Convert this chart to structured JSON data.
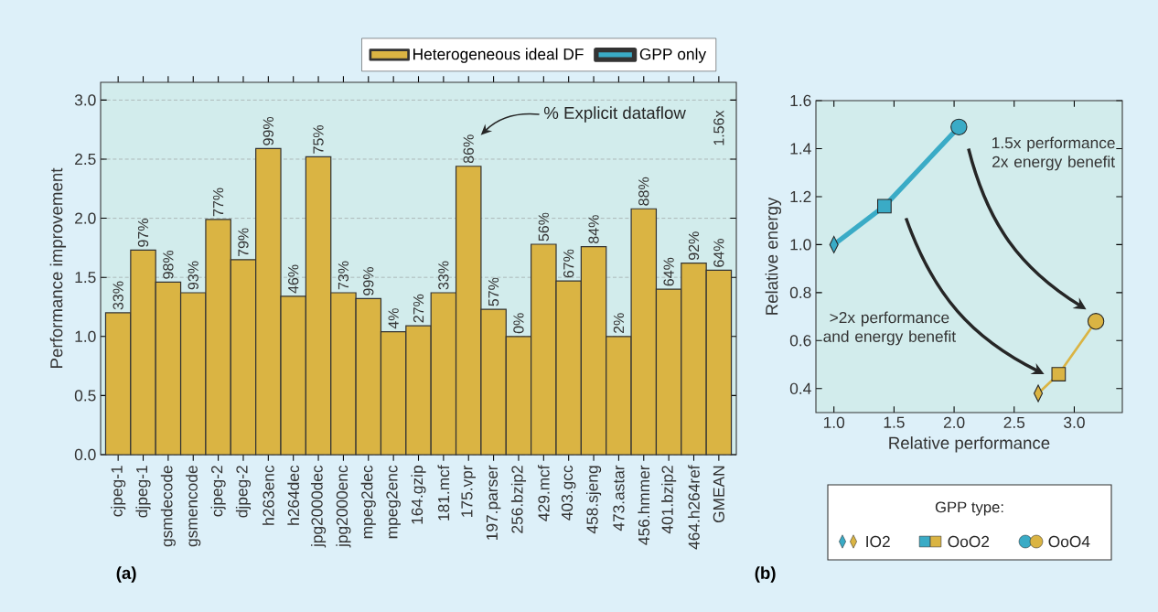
{
  "chart_data": [
    {
      "type": "bar",
      "ylabel": "Performance improvement",
      "color": "#dab443",
      "categories": [
        "cjpeg-1",
        "djpeg-1",
        "gsmdecode",
        "gsmencode",
        "cjpeg-2",
        "djpeg-2",
        "h263enc",
        "h264dec",
        "jpg2000dec",
        "jpg2000enc",
        "mpeg2dec",
        "mpeg2enc",
        "164.gzip",
        "181.mcf",
        "175.vpr",
        "197.parser",
        "256.bzip2",
        "429.mcf",
        "403.gcc",
        "458.sjeng",
        "473.astar",
        "456.hmmer",
        "401.bzip2",
        "464.h264ref",
        "GMEAN"
      ],
      "values": [
        1.2,
        1.73,
        1.46,
        1.37,
        1.99,
        1.65,
        2.59,
        1.34,
        2.52,
        1.37,
        1.32,
        1.04,
        1.09,
        1.37,
        2.44,
        1.23,
        1.0,
        1.78,
        1.47,
        1.76,
        1.0,
        2.08,
        1.4,
        1.62,
        1.56
      ],
      "ylim": [
        0,
        3.15
      ],
      "yticks": [
        {
          "value": 0,
          "label": "0.0"
        },
        {
          "value": 0.5,
          "label": "0.5"
        },
        {
          "value": 1,
          "label": "1.0"
        },
        {
          "value": 1.5,
          "label": "1.5"
        },
        {
          "value": 2,
          "label": "2.0"
        },
        {
          "value": 2.5,
          "label": "2.5"
        },
        {
          "value": 3,
          "label": "3.0"
        }
      ],
      "grid": "y",
      "annotations": [
        {
          "text": "33%",
          "x": "cjpeg-1",
          "y": 1.2
        },
        {
          "text": "97%",
          "x": "djpeg-1",
          "y": 1.73
        },
        {
          "text": "98%",
          "x": "gsmdecode",
          "y": 1.46
        },
        {
          "text": "93%",
          "x": "gsmencode",
          "y": 1.37
        },
        {
          "text": "77%",
          "x": "cjpeg-2",
          "y": 1.99
        },
        {
          "text": "79%",
          "x": "djpeg-2",
          "y": 1.65
        },
        {
          "text": "99%",
          "x": "h263enc",
          "y": 2.59
        },
        {
          "text": "46%",
          "x": "h264dec",
          "y": 1.34
        },
        {
          "text": "75%",
          "x": "jpg2000dec",
          "y": 2.52
        },
        {
          "text": "73%",
          "x": "jpg2000enc",
          "y": 1.37
        },
        {
          "text": "99%",
          "x": "mpeg2dec",
          "y": 1.32
        },
        {
          "text": "4%",
          "x": "mpeg2enc",
          "y": 1.04
        },
        {
          "text": "27%",
          "x": "164.gzip",
          "y": 1.09
        },
        {
          "text": "33%",
          "x": "181.mcf",
          "y": 1.37
        },
        {
          "text": "86%",
          "x": "175.vpr",
          "y": 2.44
        },
        {
          "text": "57%",
          "x": "197.parser",
          "y": 1.23
        },
        {
          "text": "0%",
          "x": "256.bzip2",
          "y": 1.0
        },
        {
          "text": "56%",
          "x": "429.mcf",
          "y": 1.78
        },
        {
          "text": "67%",
          "x": "403.gcc",
          "y": 1.47
        },
        {
          "text": "84%",
          "x": "458.sjeng",
          "y": 1.76
        },
        {
          "text": "2%",
          "x": "473.astar",
          "y": 1.0
        },
        {
          "text": "88%",
          "x": "456.hmmer",
          "y": 2.08
        },
        {
          "text": "64%",
          "x": "401.bzip2",
          "y": 1.4
        },
        {
          "text": "92%",
          "x": "464.h264ref",
          "y": 1.62
        },
        {
          "text": "64%",
          "x": "GMEAN",
          "y": 1.56
        },
        "% Explicit dataflow",
        "1.56x",
        "(a)"
      ]
    },
    {
      "type": "line",
      "xlabel": "Relative performance",
      "ylabel": "Relative energy",
      "legend": "bottom left",
      "legend_title": "GPP type:",
      "xlim": [
        0.85,
        3.4
      ],
      "ylim": [
        0.3,
        1.6
      ],
      "xticks": [
        {
          "value": 1,
          "label": "1.0"
        },
        {
          "value": 1.5,
          "label": "1.5"
        },
        {
          "value": 2,
          "label": "2.0"
        },
        {
          "value": 2.5,
          "label": "2.5"
        },
        {
          "value": 3,
          "label": "3.0"
        }
      ],
      "yticks": [
        {
          "value": 0.4,
          "label": "0.4"
        },
        {
          "value": 0.6,
          "label": "0.6"
        },
        {
          "value": 0.8,
          "label": "0.8"
        },
        {
          "value": 1,
          "label": "1.0"
        },
        {
          "value": 1.2,
          "label": "1.2"
        },
        {
          "value": 1.4,
          "label": "1.4"
        },
        {
          "value": 1.6,
          "label": "1.6"
        }
      ],
      "series": [
        {
          "name": "Heterogeneous ideal DF",
          "type": "line",
          "color": "#dab443",
          "x": [
            2.7,
            2.87,
            3.18
          ],
          "values": [
            0.38,
            0.46,
            0.68
          ]
        },
        {
          "name": "GPP only",
          "type": "line",
          "color": "#3aabc6",
          "x": [
            1.0,
            1.42,
            2.04
          ],
          "values": [
            1.0,
            1.16,
            1.49
          ]
        },
        {
          "name": "IO2",
          "type": "scatter",
          "marker": "diamond",
          "x": [
            1.0,
            2.7
          ],
          "values": [
            1.0,
            0.38
          ],
          "colors": [
            "#3aabc6",
            "#dab443"
          ]
        },
        {
          "name": "OoO2",
          "type": "scatter",
          "marker": "square",
          "x": [
            1.42,
            2.87
          ],
          "values": [
            1.16,
            0.46
          ],
          "colors": [
            "#3aabc6",
            "#dab443"
          ]
        },
        {
          "name": "OoO4",
          "type": "scatter",
          "marker": "circle",
          "x": [
            2.04,
            3.18
          ],
          "values": [
            1.49,
            0.68
          ],
          "colors": [
            "#3aabc6",
            "#dab443"
          ]
        }
      ],
      "annotations": [
        "1.5x performance 2x energy benefit",
        ">2x performance and energy benefit",
        "(b)"
      ]
    }
  ]
}
